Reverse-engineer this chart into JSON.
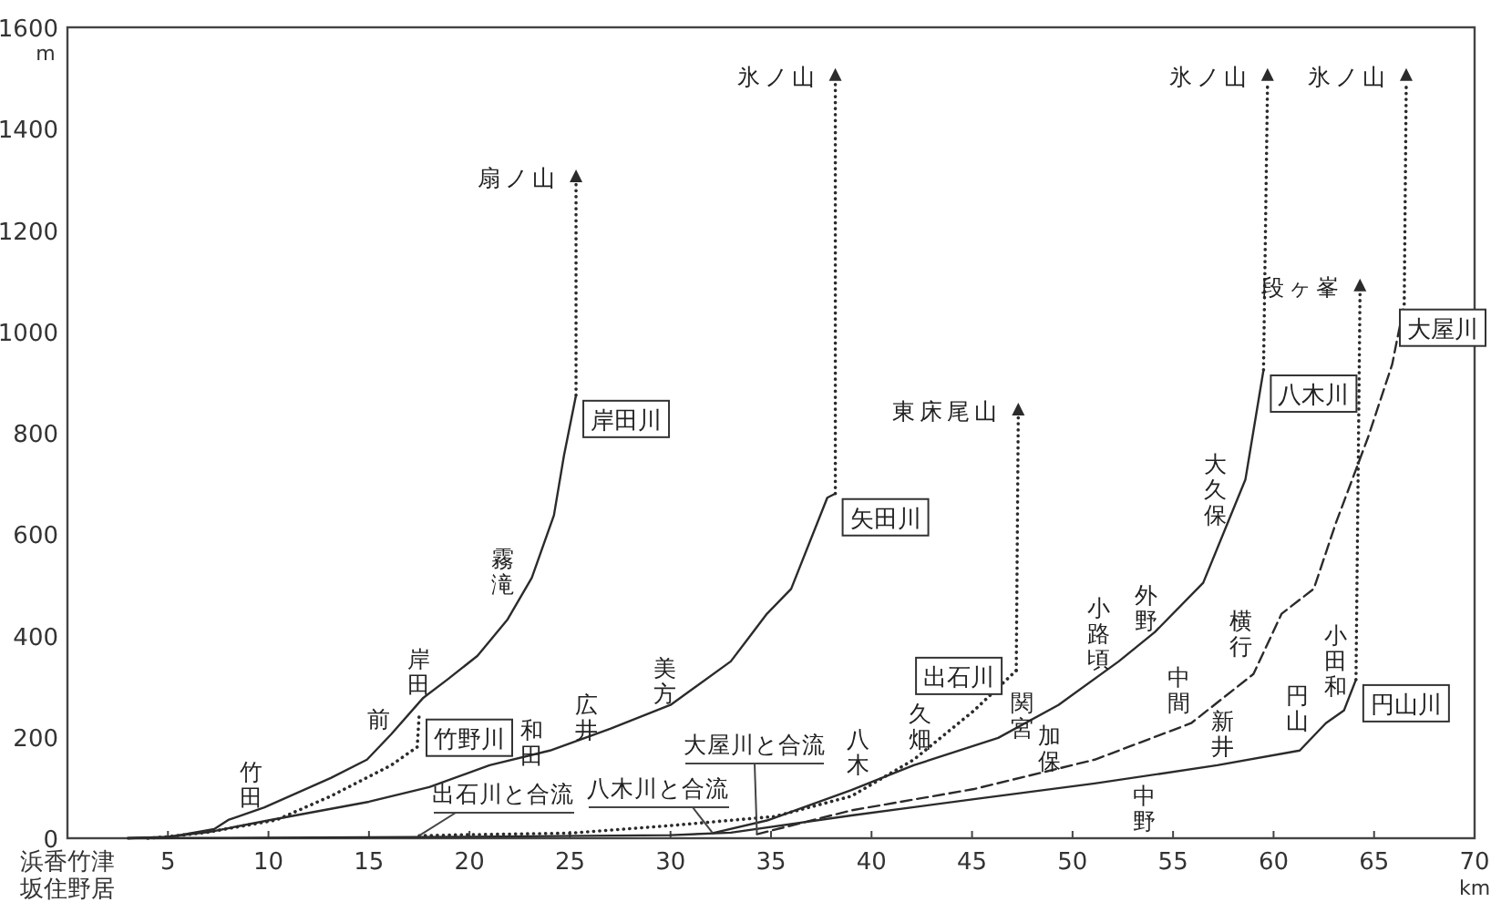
{
  "chart_data": {
    "type": "line",
    "xlabel": "km",
    "ylabel": "m",
    "xlim": [
      0,
      70
    ],
    "ylim": [
      0,
      1600
    ],
    "xticks": [
      {
        "value": 0,
        "label": "浜香竹津坂住野居"
      },
      5,
      10,
      15,
      20,
      25,
      30,
      35,
      40,
      45,
      50,
      55,
      60,
      65,
      70
    ],
    "yticks": [
      0,
      200,
      400,
      600,
      800,
      1000,
      1200,
      1400,
      1600
    ],
    "grid": false,
    "series": [
      {
        "name": "岸田川",
        "color": "#2b2b2b",
        "line_style": "solid",
        "x": [
          3,
          5,
          7.3,
          8,
          9.8,
          13.1,
          14.9,
          16.1,
          17.7,
          18.9,
          20.4,
          21.9,
          23.1,
          24.2,
          24.7,
          25.3
        ],
        "values": [
          0,
          2,
          18,
          36,
          61,
          119,
          155,
          205,
          277,
          313,
          360,
          432,
          514,
          637,
          755,
          874
        ]
      },
      {
        "name": "竹野川",
        "color": "#2b2b2b",
        "line_style": "dotted",
        "x": [
          4,
          5,
          7,
          10.4,
          13.1,
          16.1,
          17.4,
          17.5
        ],
        "values": [
          0,
          3,
          12,
          36,
          83,
          144,
          180,
          245
        ]
      },
      {
        "name": "矢田川",
        "color": "#2b2b2b",
        "line_style": "solid",
        "x": [
          3,
          5,
          7,
          10.1,
          15,
          18,
          21,
          24,
          27,
          30,
          33,
          33.9,
          34.8,
          36,
          37.8,
          38.2
        ],
        "values": [
          0,
          3,
          12,
          36,
          72,
          101,
          144,
          173,
          216,
          263,
          349,
          396,
          443,
          492,
          672,
          680
        ]
      },
      {
        "name": "出石川",
        "color": "#2b2b2b",
        "line_style": "dotted",
        "x": [
          17.5,
          20,
          25,
          30,
          35.2,
          39,
          42.1,
          45.1,
          47.2
        ],
        "values": [
          5,
          7,
          10,
          25,
          43,
          83,
          155,
          252,
          331
        ]
      },
      {
        "name": "八木川",
        "color": "#2b2b2b",
        "line_style": "solid",
        "x": [
          32.1,
          34.8,
          39,
          42.1,
          46.3,
          49.3,
          52.3,
          54.1,
          56.5,
          58.6,
          59.5
        ],
        "values": [
          10,
          35,
          95,
          144,
          198,
          263,
          349,
          407,
          504,
          708,
          924
        ]
      },
      {
        "name": "大屋川",
        "color": "#2b2b2b",
        "line_style": "dashed",
        "x": [
          34.3,
          39,
          45.1,
          51.1,
          55.9,
          59,
          60.4,
          62,
          63.1,
          64.7,
          65.9,
          66.5
        ],
        "values": [
          8,
          55,
          97,
          155,
          227,
          324,
          443,
          492,
          622,
          791,
          935,
          1054
        ]
      },
      {
        "name": "円山川",
        "color": "#2b2b2b",
        "line_style": "solid",
        "x": [
          3,
          10,
          20,
          30,
          33,
          39,
          45.1,
          51.1,
          57.2,
          61.3,
          62.6,
          63.5,
          64.1
        ],
        "values": [
          0,
          1,
          3,
          6,
          11,
          45,
          77,
          108,
          144,
          173,
          227,
          252,
          313
        ]
      }
    ],
    "annotations": [
      "竹田",
      "前",
      "岸田",
      "霧滝",
      "和田",
      "広井",
      "美方",
      "八木",
      "久畑",
      "関宮",
      "加保",
      "小路頃",
      "外野",
      "大久保",
      "中間",
      "横行",
      "新井",
      "円山",
      "小田和",
      "中野",
      {
        "text": "出石川と合流",
        "x": 17.5,
        "y": 5
      },
      {
        "text": "八木川と合流",
        "x": 32.1,
        "y": 10
      },
      {
        "text": "大屋川と合流",
        "x": 34.3,
        "y": 8
      },
      {
        "text": "扇ノ山",
        "x": 25.3,
        "y": 1305
      },
      {
        "text": "氷ノ山",
        "x": 38.2,
        "y": 1505
      },
      {
        "text": "東床尾山",
        "x": 47.3,
        "y": 845
      },
      {
        "text": "氷ノ山",
        "x": 59.7,
        "y": 1505
      },
      {
        "text": "氷ノ山",
        "x": 66.6,
        "y": 1505
      },
      {
        "text": "段ヶ峯",
        "x": 64.3,
        "y": 1090
      }
    ]
  }
}
